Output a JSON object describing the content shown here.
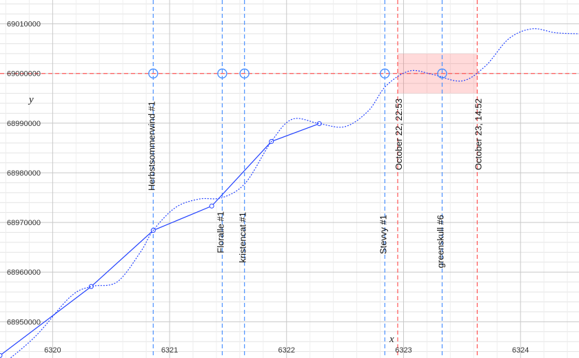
{
  "chart_data": {
    "type": "line",
    "xlabel": "x",
    "ylabel": "y",
    "xlim": [
      6319.55,
      6324.5
    ],
    "ylim": [
      68942700,
      69014800
    ],
    "x_ticks": [
      "6320",
      "6321",
      "6322",
      "6323",
      "6324"
    ],
    "y_ticks": [
      "68950000",
      "68960000",
      "68970000",
      "68980000",
      "68990000",
      "69000000",
      "69010000"
    ],
    "grid": true,
    "series": [
      {
        "style": "solid-with-points",
        "color": "#1f3fff",
        "points": [
          [
            6319.55,
            68943200
          ],
          [
            6320.33,
            68957100
          ],
          [
            6320.86,
            68968400
          ],
          [
            6321.36,
            68973300
          ],
          [
            6321.87,
            68986300
          ],
          [
            6322.28,
            68989900
          ]
        ]
      },
      {
        "style": "dotted",
        "color": "#1f3fff",
        "points": [
          [
            6319.55,
            68941000
          ],
          [
            6319.85,
            68947000
          ],
          [
            6320.15,
            68955000
          ],
          [
            6320.33,
            68957100
          ],
          [
            6320.55,
            68958000
          ],
          [
            6320.75,
            68964000
          ],
          [
            6320.86,
            68968400
          ],
          [
            6321.05,
            68973000
          ],
          [
            6321.25,
            68974700
          ],
          [
            6321.45,
            68975000
          ],
          [
            6321.65,
            68978000
          ],
          [
            6321.87,
            68986300
          ],
          [
            6322.05,
            68990800
          ],
          [
            6322.28,
            68989900
          ],
          [
            6322.5,
            68989300
          ],
          [
            6322.7,
            68992500
          ],
          [
            6322.85,
            68997500
          ],
          [
            6323.05,
            69000500
          ],
          [
            6323.25,
            68999800
          ],
          [
            6323.5,
            68998500
          ],
          [
            6323.7,
            69001500
          ],
          [
            6323.9,
            69007000
          ],
          [
            6324.1,
            69009000
          ],
          [
            6324.3,
            69008200
          ],
          [
            6324.5,
            69008000
          ]
        ]
      }
    ],
    "reference_line": {
      "y": 69000000,
      "color": "#ff5555"
    },
    "event_markers": [
      {
        "label": "Herbstsommerwind #1",
        "x": 6320.86
      },
      {
        "label": "Floralle #1",
        "x": 6321.45
      },
      {
        "label": "kristencat #1",
        "x": 6321.64
      },
      {
        "label": "Stevvy #1",
        "x": 6322.84
      },
      {
        "label": "greenskull #6",
        "x": 6323.33
      }
    ],
    "time_window": {
      "start_x": 6322.95,
      "end_x": 6323.63,
      "start_label": "October 22, 22:53",
      "end_label": "October 23, 14:52",
      "y_range": [
        68996000,
        69004000
      ],
      "color": "#ff5555"
    }
  }
}
